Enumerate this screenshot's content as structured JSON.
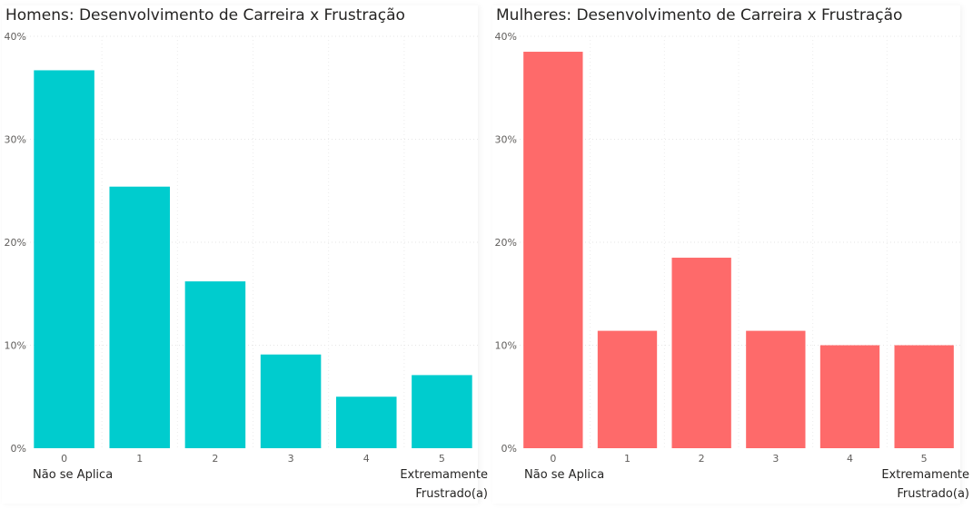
{
  "chart_data": [
    {
      "type": "bar",
      "title": "Homens: Desenvolvimento de Carreira x Frustração",
      "categories": [
        "0",
        "1",
        "2",
        "3",
        "4",
        "5"
      ],
      "values": [
        36.7,
        25.4,
        16.2,
        9.1,
        5.0,
        7.1
      ],
      "unit": "%",
      "ylim": [
        0,
        40
      ],
      "yticks": [
        "0%",
        "10%",
        "20%",
        "30%",
        "40%"
      ],
      "color": "#00ccce",
      "grid": true,
      "category_notes": {
        "first": "Não se Aplica",
        "last": "Extremamente Frustrado(a)"
      }
    },
    {
      "type": "bar",
      "title": "Mulheres: Desenvolvimento de Carreira x Frustração",
      "categories": [
        "0",
        "1",
        "2",
        "3",
        "4",
        "5"
      ],
      "values": [
        38.5,
        11.4,
        18.5,
        11.4,
        10.0,
        10.0
      ],
      "unit": "%",
      "ylim": [
        0,
        40
      ],
      "yticks": [
        "0%",
        "10%",
        "20%",
        "30%",
        "40%"
      ],
      "color": "#fe6a6a",
      "grid": true,
      "category_notes": {
        "first": "Não se Aplica",
        "last": "Extremamente Frustrado(a)"
      }
    }
  ],
  "notes": {
    "left_first": "Não se Aplica",
    "left_last_1": "Extremamente",
    "left_last_2": "Frustrado(a)",
    "right_first": "Não se Aplica",
    "right_last_1": "Extremamente",
    "right_last_2": "Frustrado(a)"
  }
}
